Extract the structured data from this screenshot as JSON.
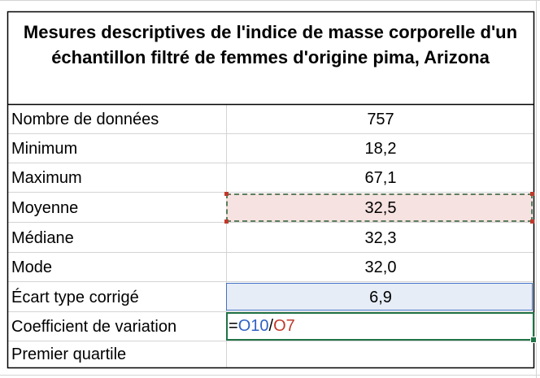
{
  "title": "Mesures descriptives de l'indice de masse corporelle d'un échantillon filtré de femmes d'origine pima, Arizona",
  "rows": [
    {
      "label": "Nombre de données",
      "value": "757"
    },
    {
      "label": "Minimum",
      "value": "18,2"
    },
    {
      "label": "Maximum",
      "value": "67,1"
    },
    {
      "label": "Moyenne",
      "value": "32,5"
    },
    {
      "label": "Médiane",
      "value": "32,3"
    },
    {
      "label": "Mode",
      "value": "32,0"
    },
    {
      "label": "Écart type corrigé",
      "value": "6,9"
    },
    {
      "label": "Coefficient de variation",
      "value": ""
    },
    {
      "label": "Premier quartile",
      "value": ""
    }
  ],
  "formula": {
    "equals": "=",
    "ref1": "O10",
    "slash": "/",
    "ref2": "O7"
  },
  "colors": {
    "copy_highlight": "#f6e2e0",
    "ref_blue": "#2f62c4",
    "ref_red": "#c0392b",
    "edit_border": "#217346"
  }
}
